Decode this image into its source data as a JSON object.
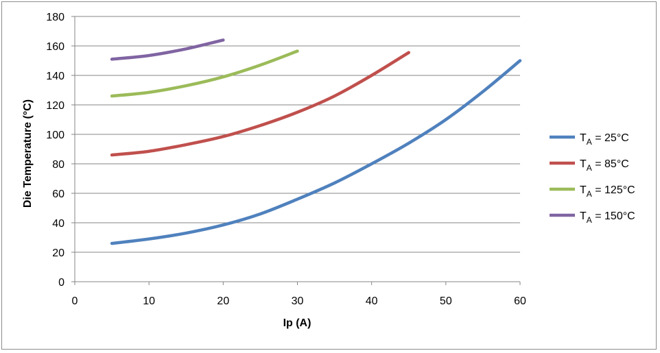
{
  "chart_data": {
    "type": "line",
    "title": "",
    "xlabel": "Ip (A)",
    "ylabel": "Die Temperature (°C)",
    "xlim": [
      0,
      60
    ],
    "ylim": [
      0,
      180
    ],
    "xticks": [
      0,
      10,
      20,
      30,
      40,
      50,
      60
    ],
    "yticks": [
      0,
      20,
      40,
      60,
      80,
      100,
      120,
      140,
      160,
      180
    ],
    "grid": "horizontal",
    "legend_position": "right",
    "series": [
      {
        "name_main": "T",
        "name_sub": "A",
        "name_rest": " = 25°C",
        "color": "#4F81BD",
        "x": [
          5,
          10,
          15,
          20,
          25,
          30,
          35,
          40,
          45,
          50,
          55,
          60
        ],
        "y": [
          26,
          29,
          33,
          38.5,
          46,
          56,
          67,
          80,
          94,
          110,
          129,
          150
        ]
      },
      {
        "name_main": "T",
        "name_sub": "A",
        "name_rest": " = 85°C",
        "color": "#C0504D",
        "x": [
          5,
          10,
          15,
          20,
          25,
          30,
          35,
          40,
          45
        ],
        "y": [
          86,
          88.5,
          93,
          98.5,
          106,
          115,
          126,
          140,
          155.5
        ]
      },
      {
        "name_main": "T",
        "name_sub": "A",
        "name_rest": " = 125°C",
        "color": "#9BBB59",
        "x": [
          5,
          10,
          15,
          20,
          25,
          30
        ],
        "y": [
          126,
          128.5,
          133,
          139,
          147,
          156.5
        ]
      },
      {
        "name_main": "T",
        "name_sub": "A",
        "name_rest": " = 150°C",
        "color": "#8064A2",
        "x": [
          5,
          10,
          15,
          20
        ],
        "y": [
          151,
          153.5,
          158,
          164
        ]
      }
    ]
  }
}
